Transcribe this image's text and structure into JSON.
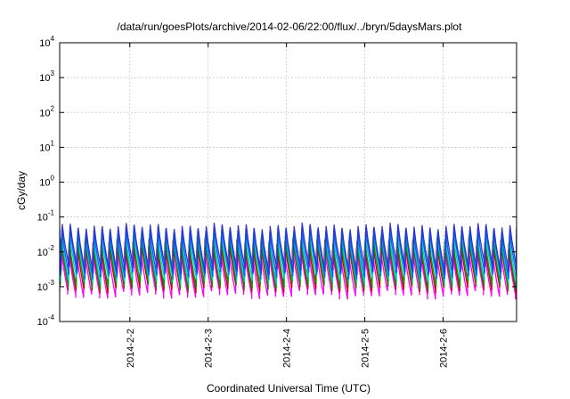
{
  "chart_data": {
    "type": "line",
    "title": "/data/run/goesPlots/archive/2014-02-06/22:00/flux/../bryn/5daysMars.plot",
    "xlabel": "Coordinated Universal Time (UTC)",
    "ylabel": "cGy/day",
    "x_range": [
      "2014-02-01T02:30",
      "2014-02-06T22:30"
    ],
    "x_ticks": [
      {
        "label": "2014-2-2",
        "value": "2014-02-02T00:00"
      },
      {
        "label": "2014-2-3",
        "value": "2014-02-03T00:00"
      },
      {
        "label": "2014-2-4",
        "value": "2014-02-04T00:00"
      },
      {
        "label": "2014-2-5",
        "value": "2014-02-05T00:00"
      },
      {
        "label": "2014-2-6",
        "value": "2014-02-06T00:00"
      }
    ],
    "y_scale": "log",
    "ylim": [
      0.0001,
      10000
    ],
    "y_ticks": [
      {
        "base": "10",
        "exp": "-4",
        "value": 0.0001
      },
      {
        "base": "10",
        "exp": "-3",
        "value": 0.001
      },
      {
        "base": "10",
        "exp": "-2",
        "value": 0.01
      },
      {
        "base": "10",
        "exp": "-1",
        "value": 0.1
      },
      {
        "base": "10",
        "exp": "0",
        "value": 1
      },
      {
        "base": "10",
        "exp": "1",
        "value": 10
      },
      {
        "base": "10",
        "exp": "2",
        "value": 100
      },
      {
        "base": "10",
        "exp": "3",
        "value": 1000
      },
      {
        "base": "10",
        "exp": "4",
        "value": 10000
      }
    ],
    "grid": true,
    "sawtooth_period_hours": 2.45,
    "series": [
      {
        "color": "#ff00ff",
        "peak": 0.012,
        "trough": 0.0006
      },
      {
        "color": "#cc0000",
        "peak": 0.02,
        "trough": 0.0009
      },
      {
        "color": "#009900",
        "peak": 0.025,
        "trough": 0.0011
      },
      {
        "color": "#00cccc",
        "peak": 0.035,
        "trough": 0.0016
      },
      {
        "color": "#0066ff",
        "peak": 0.045,
        "trough": 0.0022
      },
      {
        "color": "#3333cc",
        "peak": 0.055,
        "trough": 0.003
      }
    ]
  }
}
